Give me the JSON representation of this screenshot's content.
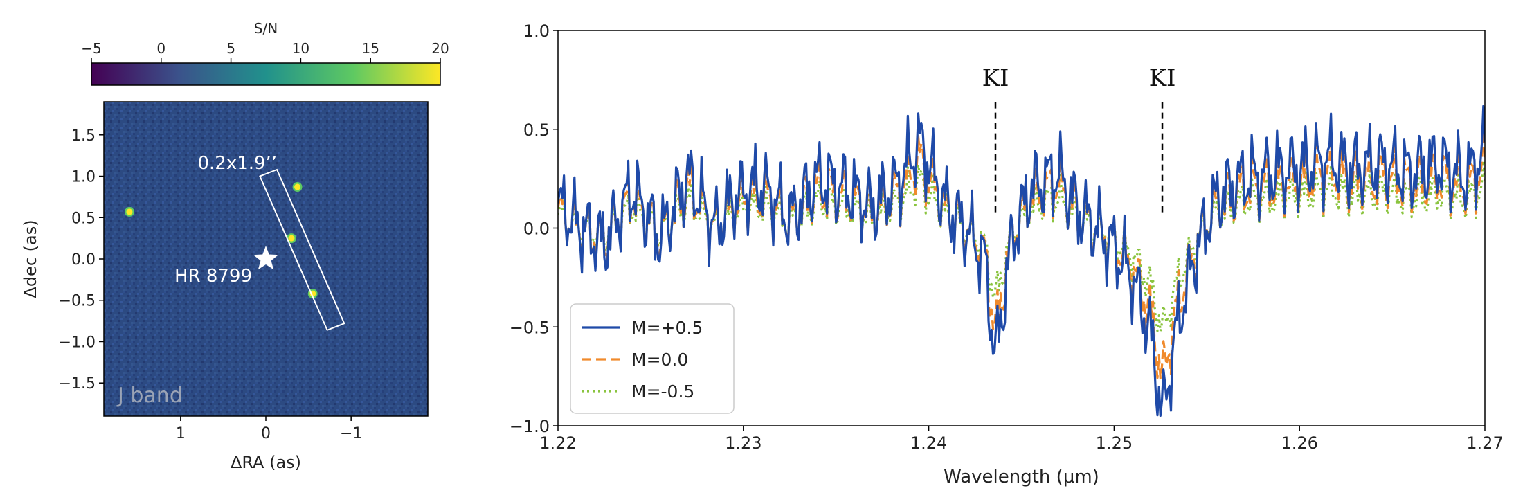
{
  "chart_data": [
    {
      "type": "heatmap",
      "colorbar": {
        "label": "S/N",
        "ticks": [
          -5,
          0,
          5,
          10,
          15,
          20
        ],
        "range": [
          -5,
          20
        ],
        "colors": [
          "#440154",
          "#3b528b",
          "#21918c",
          "#5ec962",
          "#fde725"
        ]
      },
      "background_color": "#2c4a82",
      "xlabel": "ΔRA (as)",
      "ylabel": "Δdec (as)",
      "xlim": [
        1.9,
        -1.9
      ],
      "ylim": [
        -1.9,
        1.9
      ],
      "xticks": [
        1,
        0,
        -1
      ],
      "xtick_labels": [
        "1",
        "0",
        "−1"
      ],
      "yticks": [
        1.5,
        1.0,
        0.5,
        0.0,
        -0.5,
        -1.0,
        -1.5
      ],
      "ytick_labels": [
        "1.5",
        "1.0",
        "0.5",
        "0.0",
        "−0.5",
        "−1.0",
        "−1.5"
      ],
      "star": {
        "label": "HR 8799",
        "ra": 0.0,
        "dec": 0.0
      },
      "sources": [
        {
          "ra": 1.6,
          "dec": 0.57
        },
        {
          "ra": -0.37,
          "dec": 0.87
        },
        {
          "ra": -0.3,
          "dec": 0.25
        },
        {
          "ra": -0.55,
          "dec": -0.42
        }
      ],
      "slit": {
        "label": "0.2x1.9’’",
        "corners": [
          [
            0.07,
            1.0
          ],
          [
            -0.72,
            -0.86
          ],
          [
            -0.92,
            -0.78
          ],
          [
            -0.13,
            1.08
          ]
        ]
      },
      "band_label": "J band"
    },
    {
      "type": "line",
      "xlabel": "Wavelength (μm)",
      "ylabel": "",
      "xlim": [
        1.22,
        1.27
      ],
      "ylim": [
        -1.0,
        1.0
      ],
      "xticks": [
        1.22,
        1.23,
        1.24,
        1.25,
        1.26,
        1.27
      ],
      "xtick_labels": [
        "1.22",
        "1.23",
        "1.24",
        "1.25",
        "1.26",
        "1.27"
      ],
      "yticks": [
        -1.0,
        -0.5,
        0.0,
        0.5,
        1.0
      ],
      "ytick_labels": [
        "−1.0",
        "−0.5",
        "0.0",
        "0.5",
        "1.0"
      ],
      "annotations": [
        {
          "text": "KI",
          "x": 1.2436
        },
        {
          "text": "KI",
          "x": 1.2526
        }
      ],
      "legend": {
        "position": "lower-left"
      },
      "series": [
        {
          "name": "M=+0.5",
          "color": "#1f4aa8",
          "style": "solid",
          "amplitude": 1.0
        },
        {
          "name": "M=0.0",
          "color": "#f08a2c",
          "style": "dashed",
          "amplitude": 0.8
        },
        {
          "name": "M=-0.5",
          "color": "#8ac43f",
          "style": "dotted",
          "amplitude": 0.55
        }
      ],
      "base_profile": {
        "x": [
          1.22,
          1.221,
          1.2225,
          1.224,
          1.2255,
          1.227,
          1.2285,
          1.2295,
          1.231,
          1.2325,
          1.234,
          1.2355,
          1.237,
          1.2385,
          1.2395,
          1.241,
          1.242,
          1.243,
          1.2436,
          1.2445,
          1.2455,
          1.247,
          1.248,
          1.249,
          1.25,
          1.251,
          1.252,
          1.2526,
          1.2535,
          1.2545,
          1.2555,
          1.257,
          1.2585,
          1.26,
          1.2615,
          1.263,
          1.2645,
          1.266,
          1.2675,
          1.269,
          1.27
        ],
        "y": [
          0.12,
          0.02,
          -0.08,
          0.2,
          -0.05,
          0.26,
          0.0,
          0.16,
          0.22,
          0.05,
          0.25,
          0.2,
          0.1,
          0.25,
          0.44,
          0.1,
          0.0,
          -0.15,
          -0.66,
          -0.05,
          0.2,
          0.28,
          0.1,
          0.0,
          -0.1,
          -0.25,
          -0.55,
          -0.95,
          -0.45,
          -0.1,
          0.15,
          0.25,
          0.28,
          0.3,
          0.35,
          0.3,
          0.33,
          0.28,
          0.33,
          0.25,
          0.4
        ]
      }
    }
  ]
}
